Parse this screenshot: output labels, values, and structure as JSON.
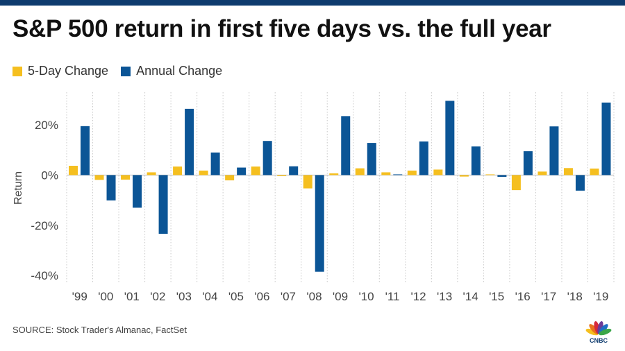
{
  "title": "S&P 500 return in first five days vs. the full year",
  "source": "SOURCE: Stock Trader's Almanac, FactSet",
  "logo_text": "CNBC",
  "colors": {
    "top_bar": "#0e3b6e",
    "five_day": "#f5bf1f",
    "annual": "#0b5596",
    "grid": "#c8c8c8",
    "zero_line": "#bdbdbd"
  },
  "legend": {
    "five_day": "5-Day Change",
    "annual": "Annual Change"
  },
  "chart_data": {
    "type": "bar",
    "ylabel": "Return",
    "ylim": [
      -43,
      33
    ],
    "y_ticks": [
      20,
      0,
      -20,
      -40
    ],
    "y_tick_labels": [
      "20%",
      "0%",
      "-20%",
      "-40%"
    ],
    "categories": [
      "'99",
      "'00",
      "'01",
      "'02",
      "'03",
      "'04",
      "'05",
      "'06",
      "'07",
      "'08",
      "'09",
      "'10",
      "'11",
      "'12",
      "'13",
      "'14",
      "'15",
      "'16",
      "'17",
      "'18",
      "'19"
    ],
    "series": [
      {
        "name": "5-Day Change",
        "color": "#f5bf1f",
        "values": [
          3.7,
          -1.9,
          -1.8,
          1.1,
          3.4,
          1.8,
          -2.1,
          3.4,
          -0.4,
          -5.3,
          0.7,
          2.7,
          1.1,
          1.8,
          2.2,
          -0.6,
          0.2,
          -6.0,
          1.4,
          2.8,
          2.6
        ]
      },
      {
        "name": "Annual Change",
        "color": "#0b5596",
        "values": [
          19.5,
          -10.1,
          -13.0,
          -23.4,
          26.4,
          9.0,
          3.0,
          13.6,
          3.5,
          -38.5,
          23.5,
          12.8,
          0.0,
          13.4,
          29.6,
          11.4,
          -0.7,
          9.5,
          19.4,
          -6.2,
          28.9
        ]
      }
    ]
  }
}
